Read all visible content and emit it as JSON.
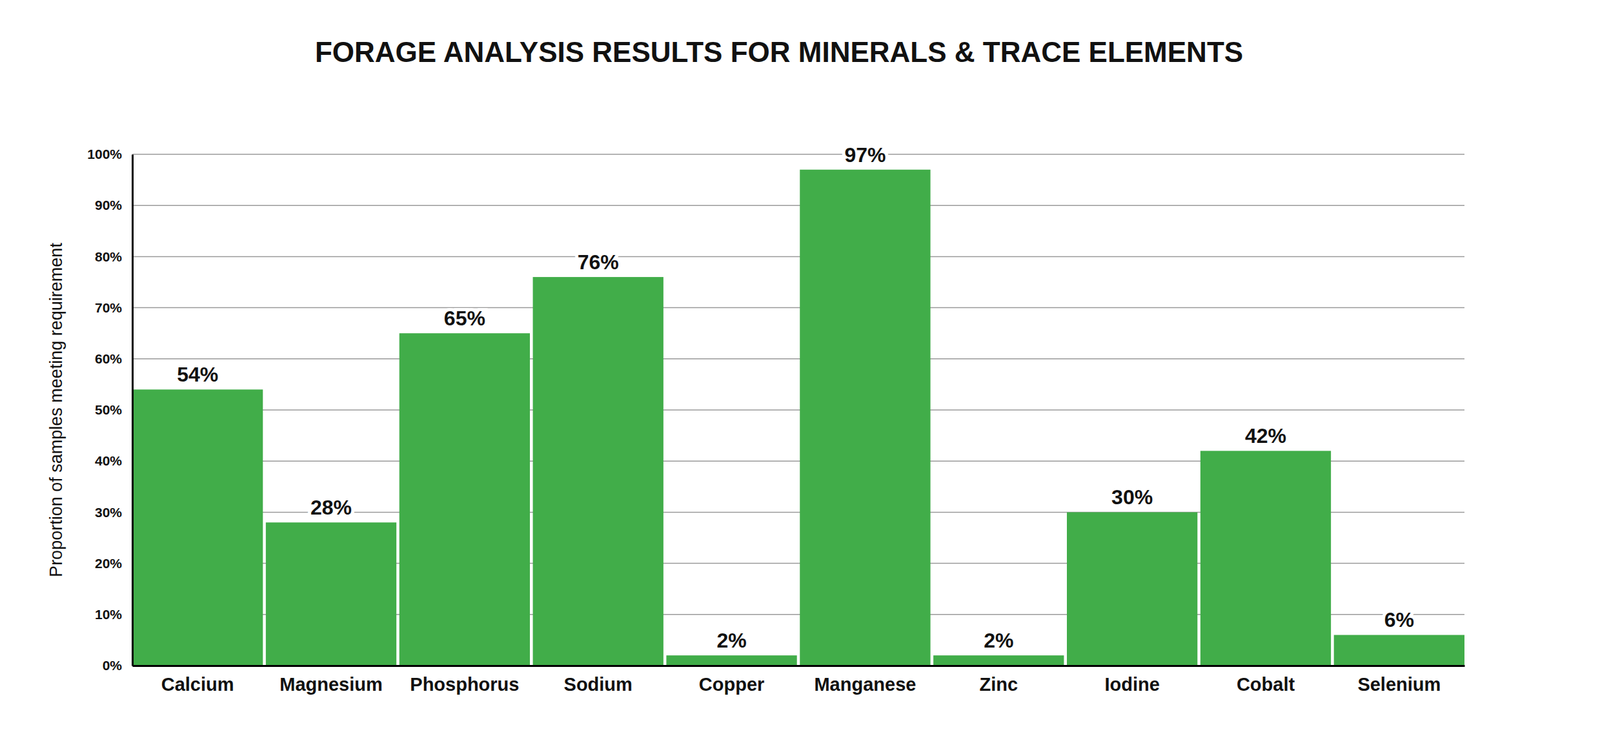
{
  "chart_data": {
    "type": "bar",
    "title": "FORAGE ANALYSIS RESULTS FOR MINERALS & TRACE ELEMENTS",
    "ylabel": "Proportion of samples meeting requirement",
    "categories": [
      "Calcium",
      "Magnesium",
      "Phosphorus",
      "Sodium",
      "Copper",
      "Manganese",
      "Zinc",
      "Iodine",
      "Cobalt",
      "Selenium"
    ],
    "values": [
      54,
      28,
      65,
      76,
      2,
      97,
      2,
      30,
      42,
      6
    ],
    "value_labels": [
      "54%",
      "28%",
      "65%",
      "76%",
      "2%",
      "97%",
      "2%",
      "30%",
      "42%",
      "6%"
    ],
    "color": "#41ad49",
    "ylim": [
      0,
      100
    ],
    "yticks": [
      {
        "value": 0,
        "label": "0%"
      },
      {
        "value": 10,
        "label": "10%"
      },
      {
        "value": 20,
        "label": "20%"
      },
      {
        "value": 30,
        "label": "30%"
      },
      {
        "value": 40,
        "label": "40%"
      },
      {
        "value": 50,
        "label": "50%"
      },
      {
        "value": 60,
        "label": "60%"
      },
      {
        "value": 70,
        "label": "70%"
      },
      {
        "value": 80,
        "label": "80%"
      },
      {
        "value": 90,
        "label": "90%"
      },
      {
        "value": 100,
        "label": "100%"
      }
    ],
    "grid": true,
    "data_labels": true
  }
}
